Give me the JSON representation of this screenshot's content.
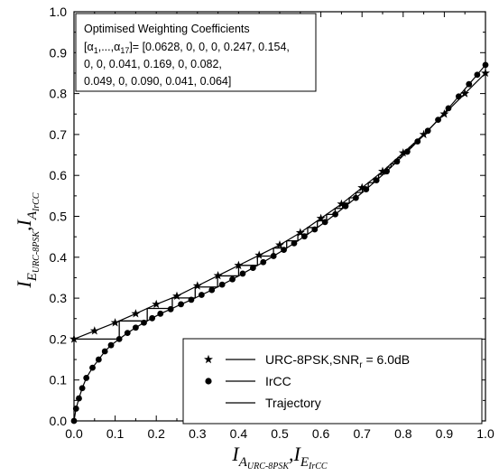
{
  "chart_data": {
    "type": "line",
    "xlim": [
      0.0,
      1.0
    ],
    "ylim": [
      0.0,
      1.0
    ],
    "grid": false,
    "legend_position": "bottom-right",
    "xticks": [
      "0.0",
      "0.1",
      "0.2",
      "0.3",
      "0.4",
      "0.5",
      "0.6",
      "0.7",
      "0.8",
      "0.9",
      "1.0"
    ],
    "yticks": [
      "0.0",
      "0.1",
      "0.2",
      "0.3",
      "0.4",
      "0.5",
      "0.6",
      "0.7",
      "0.8",
      "0.9",
      "1.0"
    ],
    "xlabel": {
      "main": "I",
      "sub": "A",
      "subsub": "URC-8PSK",
      "sep": ",",
      "main2": "I",
      "sub2": "E",
      "subsub2": "IrCC"
    },
    "ylabel": {
      "main": "I",
      "sub": "E",
      "subsub": "URC-8PSK",
      "sep": ",",
      "main2": "I",
      "sub2": "A",
      "subsub2": "IrCC"
    },
    "annotation": {
      "title": "Optimised Weighting Coefficients",
      "line1_prefix": "[α",
      "line1_sub1": "1",
      "line1_mid": ",...,α",
      "line1_sub2": "17",
      "line1_rest": "]= [0.0628, 0, 0, 0, 0.247, 0.154,",
      "line2": "0, 0, 0.041, 0.169, 0, 0.082,",
      "line3": "0.049, 0, 0.090, 0.041, 0.064]"
    },
    "legend": [
      {
        "marker": "star",
        "label_main": "URC-8PSK,SNR",
        "label_sub": "r",
        "label_tail": " = 6.0dB"
      },
      {
        "marker": "dot",
        "label_main": "IrCC",
        "label_sub": "",
        "label_tail": ""
      },
      {
        "marker": "none",
        "label_main": "Trajectory",
        "label_sub": "",
        "label_tail": ""
      }
    ],
    "series": [
      {
        "name": "URC-8PSK,SNRr = 6.0dB",
        "marker": "star",
        "x": [
          0.0,
          0.05,
          0.1,
          0.15,
          0.2,
          0.25,
          0.3,
          0.35,
          0.4,
          0.45,
          0.5,
          0.55,
          0.6,
          0.65,
          0.7,
          0.75,
          0.8,
          0.85,
          0.9,
          0.95,
          1.0
        ],
        "y": [
          0.2,
          0.22,
          0.24,
          0.262,
          0.285,
          0.305,
          0.33,
          0.355,
          0.38,
          0.405,
          0.43,
          0.46,
          0.495,
          0.53,
          0.57,
          0.61,
          0.655,
          0.7,
          0.75,
          0.8,
          0.85
        ]
      },
      {
        "name": "IrCC",
        "marker": "dot",
        "x": [
          0.0,
          0.005,
          0.012,
          0.02,
          0.03,
          0.045,
          0.06,
          0.075,
          0.09,
          0.11,
          0.13,
          0.15,
          0.17,
          0.19,
          0.21,
          0.235,
          0.26,
          0.285,
          0.31,
          0.335,
          0.36,
          0.385,
          0.41,
          0.435,
          0.46,
          0.485,
          0.51,
          0.535,
          0.56,
          0.585,
          0.61,
          0.635,
          0.66,
          0.685,
          0.71,
          0.735,
          0.76,
          0.785,
          0.81,
          0.835,
          0.86,
          0.885,
          0.91,
          0.935,
          0.96,
          0.98,
          1.0
        ],
        "y": [
          0.0,
          0.03,
          0.055,
          0.08,
          0.105,
          0.13,
          0.15,
          0.17,
          0.185,
          0.2,
          0.215,
          0.228,
          0.24,
          0.251,
          0.262,
          0.273,
          0.285,
          0.296,
          0.308,
          0.32,
          0.333,
          0.346,
          0.36,
          0.374,
          0.388,
          0.403,
          0.418,
          0.434,
          0.451,
          0.468,
          0.486,
          0.505,
          0.525,
          0.545,
          0.566,
          0.588,
          0.61,
          0.634,
          0.658,
          0.683,
          0.709,
          0.736,
          0.764,
          0.793,
          0.823,
          0.846,
          0.87
        ]
      }
    ]
  }
}
